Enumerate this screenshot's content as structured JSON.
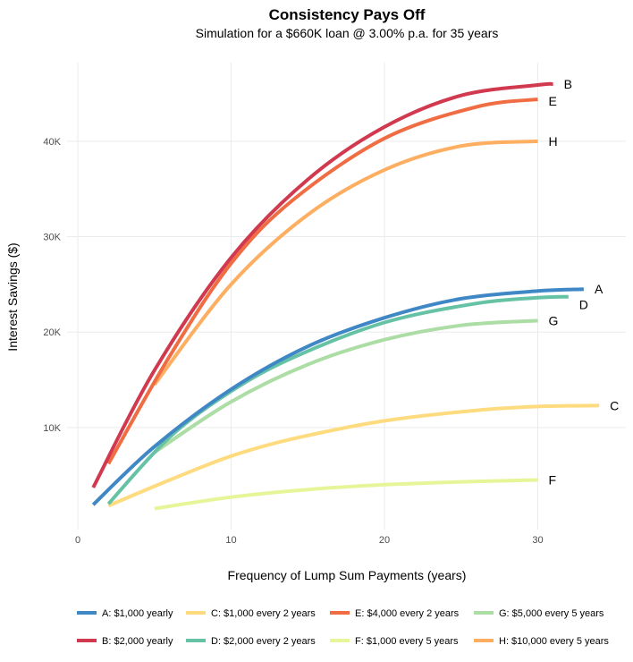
{
  "chart_data": {
    "type": "line",
    "title": "Consistency Pays Off",
    "subtitle": "Simulation for a $660K loan @ 3.00% p.a. for 35 years",
    "xlabel": "Frequency of Lump Sum Payments (years)",
    "ylabel": "Interest Savings ($)",
    "xlim": [
      0,
      36
    ],
    "ylim": [
      0,
      48500
    ],
    "x_ticks": [
      0,
      10,
      20,
      30
    ],
    "y_ticks": [
      10000,
      20000,
      30000,
      40000
    ],
    "y_tick_labels": [
      "10K",
      "20K",
      "30K",
      "40K"
    ],
    "grid": true,
    "legend_position": "bottom",
    "series": [
      {
        "id": "A",
        "name": "A: $1,000 yearly",
        "color": "#3f88c5",
        "end_label": "A",
        "x": [
          1,
          5,
          10,
          15,
          20,
          25,
          30,
          33
        ],
        "y": [
          1900,
          8000,
          14000,
          18500,
          21500,
          23500,
          24300,
          24500
        ]
      },
      {
        "id": "B",
        "name": "B: $2,000 yearly",
        "color": "#d1394f",
        "end_label": "B",
        "x": [
          1,
          5,
          10,
          15,
          20,
          25,
          30,
          31
        ],
        "y": [
          3700,
          16000,
          27800,
          36000,
          41500,
          44800,
          45900,
          46000
        ]
      },
      {
        "id": "C",
        "name": "C: $1,000 every 2 years",
        "color": "#fedb7e",
        "end_label": "C",
        "x": [
          2,
          6,
          10,
          14,
          20,
          26,
          30,
          34
        ],
        "y": [
          1800,
          4500,
          7000,
          8800,
          10700,
          11800,
          12200,
          12300
        ]
      },
      {
        "id": "D",
        "name": "D: $2,000 every 2 years",
        "color": "#66c2a5",
        "end_label": "D",
        "x": [
          2,
          6,
          10,
          14,
          20,
          26,
          30,
          32
        ],
        "y": [
          2000,
          9000,
          13800,
          17300,
          21000,
          23000,
          23600,
          23700
        ]
      },
      {
        "id": "E",
        "name": "E: $4,000 every 2 years",
        "color": "#f06d43",
        "end_label": "E",
        "x": [
          2,
          6,
          10,
          14,
          20,
          26,
          30
        ],
        "y": [
          6200,
          17500,
          27200,
          33800,
          40300,
          43600,
          44400
        ]
      },
      {
        "id": "F",
        "name": "F: $1,000 every 5 years",
        "color": "#e6f598",
        "end_label": "F",
        "x": [
          5,
          10,
          15,
          20,
          25,
          30
        ],
        "y": [
          1500,
          2700,
          3500,
          4000,
          4300,
          4500
        ]
      },
      {
        "id": "G",
        "name": "G: $5,000 every 5 years",
        "color": "#abdda4",
        "end_label": "G",
        "x": [
          5,
          10,
          15,
          20,
          25,
          30
        ],
        "y": [
          7400,
          12700,
          16600,
          19200,
          20700,
          21200
        ]
      },
      {
        "id": "H",
        "name": "H: $10,000 every 5 years",
        "color": "#fdae61",
        "end_label": "H",
        "x": [
          5,
          10,
          15,
          20,
          25,
          30
        ],
        "y": [
          14500,
          25000,
          32300,
          37000,
          39500,
          40000
        ]
      }
    ],
    "legend_order": [
      "A",
      "C",
      "E",
      "G",
      "B",
      "D",
      "F",
      "H"
    ]
  }
}
